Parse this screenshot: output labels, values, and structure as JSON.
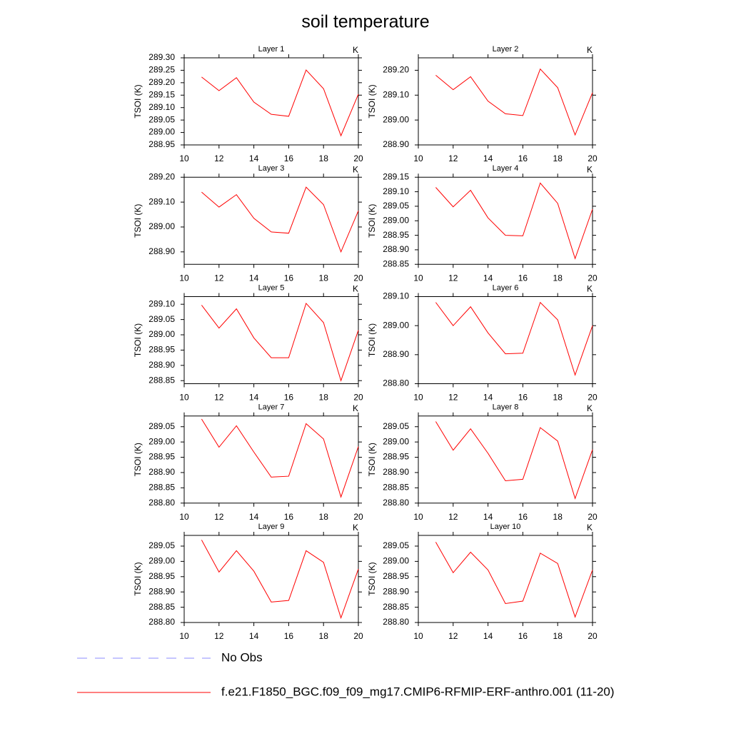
{
  "title": "soil temperature",
  "legend": [
    {
      "name": "No Obs",
      "color": "#8c8cff",
      "dash": true
    },
    {
      "name": "f.e21.F1850_BGC.f09_f09_mg17.CMIP6-RFMIP-ERF-anthro.001 (11-20)",
      "color": "#ff0000"
    }
  ],
  "chart_data": [
    {
      "type": "line",
      "title": "Layer 1",
      "unit": "K",
      "y_label": "TSOI  (K)",
      "color": "#ff0000",
      "x": [
        11,
        12,
        13,
        14,
        15,
        16,
        17,
        18,
        19,
        20
      ],
      "values": [
        289.223,
        289.168,
        289.22,
        289.122,
        289.073,
        289.065,
        289.251,
        289.176,
        288.987,
        289.154
      ],
      "xlim": [
        10,
        20
      ],
      "xticks": [
        10,
        12,
        14,
        16,
        18,
        20
      ],
      "ylim": [
        288.95,
        289.3
      ],
      "yticks": [
        {
          "value": 289.3,
          "label": "289.30"
        },
        289.25,
        {
          "value": 289.2,
          "label": "289.20"
        },
        289.15,
        {
          "value": 289.1,
          "label": "289.10"
        },
        289.05,
        {
          "value": 289,
          "label": "289.00"
        },
        288.95
      ]
    },
    {
      "type": "line",
      "title": "Layer 2",
      "unit": "K",
      "y_label": "TSOI  (K)",
      "color": "#ff0000",
      "x": [
        11,
        12,
        13,
        14,
        15,
        16,
        17,
        18,
        19,
        20
      ],
      "values": [
        289.18,
        289.122,
        289.174,
        289.076,
        289.025,
        289.018,
        289.205,
        289.13,
        288.94,
        289.11
      ],
      "xlim": [
        10,
        20
      ],
      "xticks": [
        10,
        12,
        14,
        16,
        18,
        20
      ],
      "ylim": [
        288.9,
        289.25
      ],
      "yticks": [
        {
          "value": 289.2,
          "label": "289.20"
        },
        {
          "value": 289.1,
          "label": "289.10"
        },
        {
          "value": 289,
          "label": "289.00"
        },
        {
          "value": 288.9,
          "label": "288.90"
        }
      ]
    },
    {
      "type": "line",
      "title": "Layer 3",
      "unit": "K",
      "y_label": "TSOI  (K)",
      "color": "#ff0000",
      "x": [
        11,
        12,
        13,
        14,
        15,
        16,
        17,
        18,
        19,
        20
      ],
      "values": [
        289.14,
        289.08,
        289.13,
        289.035,
        288.98,
        288.975,
        289.16,
        289.09,
        288.9,
        289.065
      ],
      "xlim": [
        10,
        20
      ],
      "xticks": [
        10,
        12,
        14,
        16,
        18,
        20
      ],
      "ylim": [
        288.85,
        289.2
      ],
      "yticks": [
        {
          "value": 289.2,
          "label": "289.20"
        },
        {
          "value": 289.1,
          "label": "289.10"
        },
        {
          "value": 289,
          "label": "289.00"
        },
        {
          "value": 288.9,
          "label": "288.90"
        }
      ]
    },
    {
      "type": "line",
      "title": "Layer 4",
      "unit": "K",
      "y_label": "TSOI  (K)",
      "color": "#ff0000",
      "x": [
        11,
        12,
        13,
        14,
        15,
        16,
        17,
        18,
        19,
        20
      ],
      "values": [
        289.115,
        289.048,
        289.105,
        289.01,
        288.95,
        288.948,
        289.13,
        289.06,
        288.87,
        289.04
      ],
      "xlim": [
        10,
        20
      ],
      "xticks": [
        10,
        12,
        14,
        16,
        18,
        20
      ],
      "ylim": [
        288.85,
        289.15
      ],
      "yticks": [
        289.15,
        {
          "value": 289.1,
          "label": "289.10"
        },
        289.05,
        {
          "value": 289,
          "label": "289.00"
        },
        288.95,
        {
          "value": 288.9,
          "label": "288.90"
        },
        288.85
      ]
    },
    {
      "type": "line",
      "title": "Layer 5",
      "unit": "K",
      "y_label": "TSOI  (K)",
      "color": "#ff0000",
      "x": [
        11,
        12,
        13,
        14,
        15,
        16,
        17,
        18,
        19,
        20
      ],
      "values": [
        289.097,
        289.022,
        289.085,
        288.99,
        288.925,
        288.925,
        289.103,
        289.04,
        288.85,
        289.015
      ],
      "xlim": [
        10,
        20
      ],
      "xticks": [
        10,
        12,
        14,
        16,
        18,
        20
      ],
      "ylim": [
        288.84,
        289.125
      ],
      "yticks": [
        {
          "value": 289.1,
          "label": "289.10"
        },
        289.05,
        {
          "value": 289,
          "label": "289.00"
        },
        288.95,
        {
          "value": 288.9,
          "label": "288.90"
        },
        288.85
      ]
    },
    {
      "type": "line",
      "title": "Layer 6",
      "unit": "K",
      "y_label": "TSOI  (K)",
      "color": "#ff0000",
      "x": [
        11,
        12,
        13,
        14,
        15,
        16,
        17,
        18,
        19,
        20
      ],
      "values": [
        289.08,
        289,
        289.065,
        288.975,
        288.903,
        288.905,
        289.08,
        289.02,
        288.83,
        289
      ],
      "xlim": [
        10,
        20
      ],
      "xticks": [
        10,
        12,
        14,
        16,
        18,
        20
      ],
      "ylim": [
        288.8,
        289.1
      ],
      "yticks": [
        {
          "value": 289.1,
          "label": "289.10"
        },
        {
          "value": 289,
          "label": "289.00"
        },
        {
          "value": 288.9,
          "label": "288.90"
        },
        {
          "value": 288.8,
          "label": "288.80"
        }
      ]
    },
    {
      "type": "line",
      "title": "Layer 7",
      "unit": "K",
      "y_label": "TSOI  (K)",
      "color": "#ff0000",
      "x": [
        11,
        12,
        13,
        14,
        15,
        16,
        17,
        18,
        19,
        20
      ],
      "values": [
        289.075,
        288.983,
        289.053,
        288.967,
        288.885,
        288.888,
        289.06,
        289.01,
        288.82,
        288.985
      ],
      "xlim": [
        10,
        20
      ],
      "xticks": [
        10,
        12,
        14,
        16,
        18,
        20
      ],
      "ylim": [
        288.8,
        289.085
      ],
      "yticks": [
        289.05,
        {
          "value": 289,
          "label": "289.00"
        },
        288.95,
        {
          "value": 288.9,
          "label": "288.90"
        },
        288.85,
        {
          "value": 288.8,
          "label": "288.80"
        }
      ]
    },
    {
      "type": "line",
      "title": "Layer 8",
      "unit": "K",
      "y_label": "TSOI  (K)",
      "color": "#ff0000",
      "x": [
        11,
        12,
        13,
        14,
        15,
        16,
        17,
        18,
        19,
        20
      ],
      "values": [
        289.067,
        288.973,
        289.043,
        288.963,
        288.873,
        288.878,
        289.047,
        289.003,
        288.815,
        288.975
      ],
      "xlim": [
        10,
        20
      ],
      "xticks": [
        10,
        12,
        14,
        16,
        18,
        20
      ],
      "ylim": [
        288.8,
        289.085
      ],
      "yticks": [
        289.05,
        {
          "value": 289,
          "label": "289.00"
        },
        288.95,
        {
          "value": 288.9,
          "label": "288.90"
        },
        288.85,
        {
          "value": 288.8,
          "label": "288.80"
        }
      ]
    },
    {
      "type": "line",
      "title": "Layer 9",
      "unit": "K",
      "y_label": "TSOI  (K)",
      "color": "#ff0000",
      "x": [
        11,
        12,
        13,
        14,
        15,
        16,
        17,
        18,
        19,
        20
      ],
      "values": [
        289.07,
        288.965,
        289.035,
        288.968,
        288.867,
        288.872,
        289.035,
        288.997,
        288.815,
        288.975
      ],
      "xlim": [
        10,
        20
      ],
      "xticks": [
        10,
        12,
        14,
        16,
        18,
        20
      ],
      "ylim": [
        288.8,
        289.085
      ],
      "yticks": [
        289.05,
        {
          "value": 289,
          "label": "289.00"
        },
        288.95,
        {
          "value": 288.9,
          "label": "288.90"
        },
        288.85,
        {
          "value": 288.8,
          "label": "288.80"
        }
      ]
    },
    {
      "type": "line",
      "title": "Layer 10",
      "unit": "K",
      "y_label": "TSOI  (K)",
      "color": "#ff0000",
      "x": [
        11,
        12,
        13,
        14,
        15,
        16,
        17,
        18,
        19,
        20
      ],
      "values": [
        289.063,
        288.963,
        289.03,
        288.972,
        288.862,
        288.87,
        289.027,
        288.993,
        288.818,
        288.972
      ],
      "xlim": [
        10,
        20
      ],
      "xticks": [
        10,
        12,
        14,
        16,
        18,
        20
      ],
      "ylim": [
        288.8,
        289.085
      ],
      "yticks": [
        289.05,
        {
          "value": 289,
          "label": "289.00"
        },
        288.95,
        {
          "value": 288.9,
          "label": "288.90"
        },
        288.85,
        {
          "value": 288.8,
          "label": "288.80"
        }
      ]
    }
  ]
}
